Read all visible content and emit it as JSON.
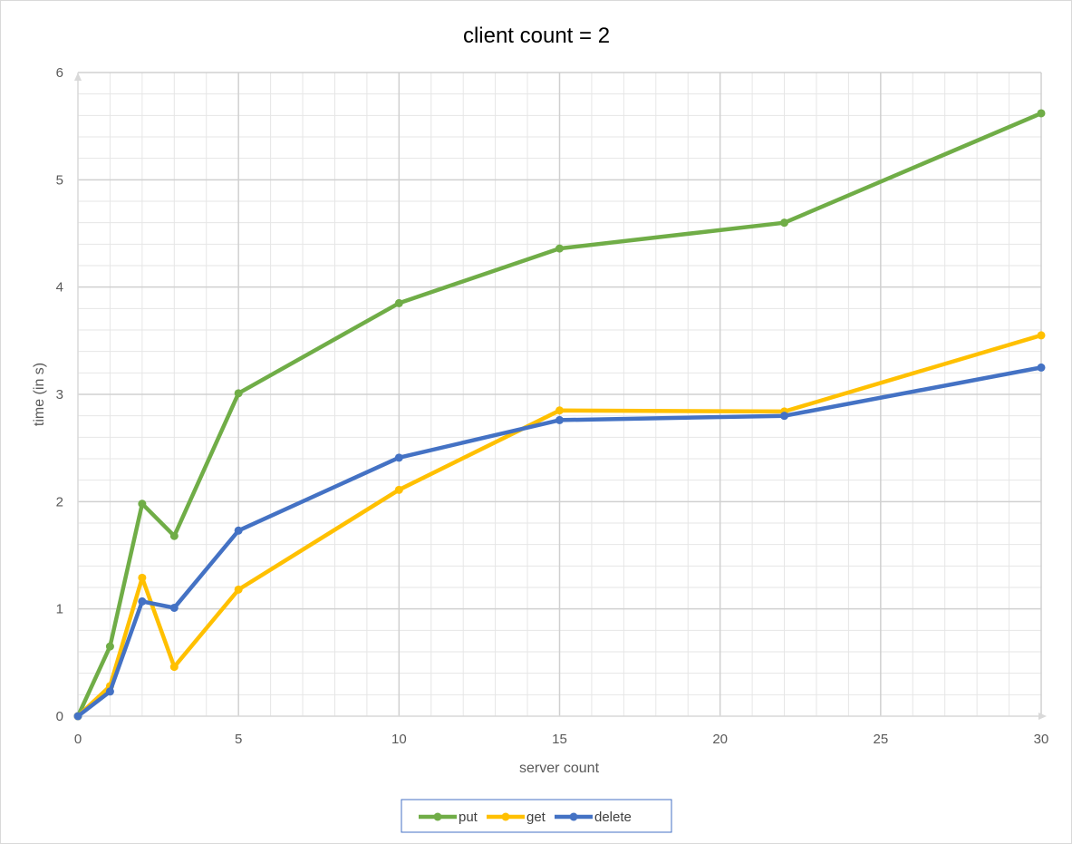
{
  "chart_data": {
    "type": "line",
    "title": "client count = 2",
    "xlabel": "server count",
    "ylabel": "time (in s)",
    "xlim": [
      0,
      30
    ],
    "ylim": [
      0,
      6
    ],
    "x_ticks": [
      0,
      5,
      10,
      15,
      20,
      25,
      30
    ],
    "y_ticks": [
      0,
      1,
      2,
      3,
      4,
      5,
      6
    ],
    "grid": true,
    "legend_position": "bottom",
    "series": [
      {
        "name": "put",
        "color": "#70ad47",
        "x": [
          0,
          1,
          2,
          3,
          5,
          10,
          15,
          22,
          30
        ],
        "y": [
          0,
          0.65,
          1.98,
          1.68,
          3.01,
          3.85,
          4.36,
          4.6,
          5.62
        ]
      },
      {
        "name": "get",
        "color": "#ffc000",
        "x": [
          0,
          1,
          2,
          3,
          5,
          10,
          15,
          22,
          30
        ],
        "y": [
          0,
          0.28,
          1.29,
          0.46,
          1.18,
          2.11,
          2.85,
          2.84,
          3.55
        ]
      },
      {
        "name": "delete",
        "color": "#4472c4",
        "x": [
          0,
          1,
          2,
          3,
          5,
          10,
          15,
          22,
          30
        ],
        "y": [
          0,
          0.23,
          1.07,
          1.01,
          1.73,
          2.41,
          2.76,
          2.8,
          3.25
        ]
      }
    ]
  }
}
